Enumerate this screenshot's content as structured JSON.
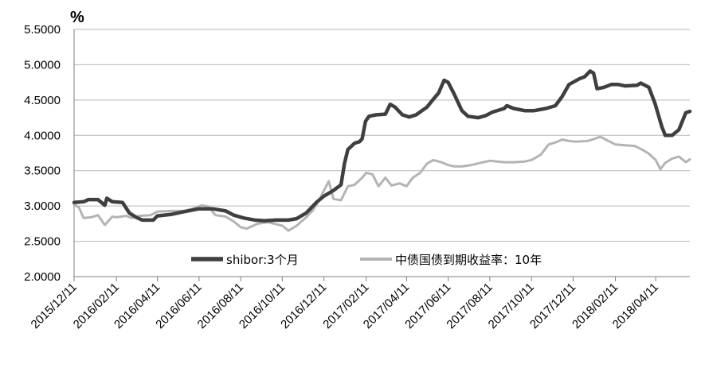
{
  "chart_data": {
    "type": "line",
    "title": "",
    "ylabel": "%",
    "xlabel": "",
    "ylim": [
      2.0,
      5.5
    ],
    "y_ticks": [
      "2.0000",
      "2.5000",
      "3.0000",
      "3.5000",
      "4.0000",
      "4.5000",
      "5.0000",
      "5.5000"
    ],
    "x_ticks": [
      "2015/12/11",
      "2016/02/11",
      "2016/04/11",
      "2016/06/11",
      "2016/08/11",
      "2016/10/11",
      "2016/12/11",
      "2017/02/11",
      "2017/04/11",
      "2017/06/11",
      "2017/08/11",
      "2017/10/11",
      "2017/12/11",
      "2018/02/11",
      "2018/04/11"
    ],
    "x_range": [
      "2015/12/11",
      "2018/05/31"
    ],
    "grid": "horizontal",
    "legend_position": "bottom-center",
    "series": [
      {
        "name": "shibor:3个月",
        "color": "#3f3f3f",
        "points": [
          [
            "2015/12/11",
            3.05
          ],
          [
            "2015/12/25",
            3.06
          ],
          [
            "2016/01/01",
            3.09
          ],
          [
            "2016/01/15",
            3.09
          ],
          [
            "2016/01/25",
            3.01
          ],
          [
            "2016/01/28",
            3.11
          ],
          [
            "2016/02/05",
            3.06
          ],
          [
            "2016/02/20",
            3.05
          ],
          [
            "2016/03/01",
            2.9
          ],
          [
            "2016/03/11",
            2.84
          ],
          [
            "2016/03/20",
            2.8
          ],
          [
            "2016/04/05",
            2.8
          ],
          [
            "2016/04/11",
            2.86
          ],
          [
            "2016/05/01",
            2.88
          ],
          [
            "2016/05/20",
            2.92
          ],
          [
            "2016/06/11",
            2.96
          ],
          [
            "2016/07/01",
            2.96
          ],
          [
            "2016/07/20",
            2.93
          ],
          [
            "2016/08/01",
            2.87
          ],
          [
            "2016/08/15",
            2.83
          ],
          [
            "2016/09/01",
            2.8
          ],
          [
            "2016/09/15",
            2.79
          ],
          [
            "2016/10/01",
            2.8
          ],
          [
            "2016/10/20",
            2.8
          ],
          [
            "2016/11/01",
            2.82
          ],
          [
            "2016/11/15",
            2.9
          ],
          [
            "2016/12/01",
            3.06
          ],
          [
            "2016/12/11",
            3.14
          ],
          [
            "2016/12/25",
            3.22
          ],
          [
            "2017/01/05",
            3.3
          ],
          [
            "2017/01/10",
            3.6
          ],
          [
            "2017/01/15",
            3.8
          ],
          [
            "2017/01/25",
            3.89
          ],
          [
            "2017/02/01",
            3.91
          ],
          [
            "2017/02/05",
            3.95
          ],
          [
            "2017/02/10",
            4.2
          ],
          [
            "2017/02/15",
            4.27
          ],
          [
            "2017/02/25",
            4.29
          ],
          [
            "2017/03/11",
            4.3
          ],
          [
            "2017/03/18",
            4.44
          ],
          [
            "2017/03/25",
            4.4
          ],
          [
            "2017/04/05",
            4.29
          ],
          [
            "2017/04/15",
            4.26
          ],
          [
            "2017/04/25",
            4.29
          ],
          [
            "2017/05/11",
            4.4
          ],
          [
            "2017/05/20",
            4.51
          ],
          [
            "2017/05/28",
            4.6
          ],
          [
            "2017/06/05",
            4.78
          ],
          [
            "2017/06/11",
            4.75
          ],
          [
            "2017/06/20",
            4.58
          ],
          [
            "2017/07/01",
            4.35
          ],
          [
            "2017/07/10",
            4.27
          ],
          [
            "2017/07/25",
            4.25
          ],
          [
            "2017/08/05",
            4.28
          ],
          [
            "2017/08/15",
            4.33
          ],
          [
            "2017/09/01",
            4.38
          ],
          [
            "2017/09/05",
            4.42
          ],
          [
            "2017/09/15",
            4.38
          ],
          [
            "2017/10/01",
            4.35
          ],
          [
            "2017/10/15",
            4.35
          ],
          [
            "2017/11/01",
            4.38
          ],
          [
            "2017/11/15",
            4.42
          ],
          [
            "2017/11/25",
            4.55
          ],
          [
            "2017/12/05",
            4.72
          ],
          [
            "2017/12/20",
            4.8
          ],
          [
            "2017/12/28",
            4.83
          ],
          [
            "2018/01/05",
            4.91
          ],
          [
            "2018/01/10",
            4.88
          ],
          [
            "2018/01/15",
            4.66
          ],
          [
            "2018/01/25",
            4.68
          ],
          [
            "2018/02/05",
            4.72
          ],
          [
            "2018/02/15",
            4.72
          ],
          [
            "2018/02/25",
            4.7
          ],
          [
            "2018/03/15",
            4.71
          ],
          [
            "2018/03/20",
            4.74
          ],
          [
            "2018/04/01",
            4.68
          ],
          [
            "2018/04/10",
            4.45
          ],
          [
            "2018/04/20",
            4.12
          ],
          [
            "2018/04/25",
            4.0
          ],
          [
            "2018/05/05",
            4.0
          ],
          [
            "2018/05/15",
            4.08
          ],
          [
            "2018/05/25",
            4.32
          ],
          [
            "2018/05/31",
            4.34
          ]
        ]
      },
      {
        "name": "中债国债到期收益率：10年",
        "color": "#b4b4b4",
        "points": [
          [
            "2015/12/11",
            3.02
          ],
          [
            "2015/12/18",
            2.98
          ],
          [
            "2015/12/25",
            2.83
          ],
          [
            "2016/01/05",
            2.84
          ],
          [
            "2016/01/15",
            2.87
          ],
          [
            "2016/01/25",
            2.73
          ],
          [
            "2016/02/05",
            2.85
          ],
          [
            "2016/02/11",
            2.84
          ],
          [
            "2016/02/25",
            2.86
          ],
          [
            "2016/03/05",
            2.83
          ],
          [
            "2016/03/15",
            2.86
          ],
          [
            "2016/04/01",
            2.87
          ],
          [
            "2016/04/11",
            2.92
          ],
          [
            "2016/05/01",
            2.93
          ],
          [
            "2016/05/20",
            2.93
          ],
          [
            "2016/06/05",
            2.97
          ],
          [
            "2016/06/15",
            3.01
          ],
          [
            "2016/06/25",
            2.99
          ],
          [
            "2016/07/05",
            2.87
          ],
          [
            "2016/07/20",
            2.85
          ],
          [
            "2016/08/01",
            2.78
          ],
          [
            "2016/08/11",
            2.7
          ],
          [
            "2016/08/20",
            2.68
          ],
          [
            "2016/09/05",
            2.75
          ],
          [
            "2016/09/20",
            2.77
          ],
          [
            "2016/10/11",
            2.72
          ],
          [
            "2016/10/20",
            2.65
          ],
          [
            "2016/11/01",
            2.72
          ],
          [
            "2016/11/15",
            2.84
          ],
          [
            "2016/11/25",
            2.94
          ],
          [
            "2016/12/05",
            3.1
          ],
          [
            "2016/12/11",
            3.22
          ],
          [
            "2016/12/18",
            3.35
          ],
          [
            "2016/12/25",
            3.1
          ],
          [
            "2017/01/05",
            3.08
          ],
          [
            "2017/01/15",
            3.28
          ],
          [
            "2017/01/25",
            3.3
          ],
          [
            "2017/02/05",
            3.4
          ],
          [
            "2017/02/11",
            3.47
          ],
          [
            "2017/02/20",
            3.45
          ],
          [
            "2017/03/01",
            3.28
          ],
          [
            "2017/03/11",
            3.4
          ],
          [
            "2017/03/20",
            3.29
          ],
          [
            "2017/04/01",
            3.32
          ],
          [
            "2017/04/11",
            3.28
          ],
          [
            "2017/04/20",
            3.4
          ],
          [
            "2017/05/01",
            3.47
          ],
          [
            "2017/05/11",
            3.6
          ],
          [
            "2017/05/20",
            3.65
          ],
          [
            "2017/06/01",
            3.62
          ],
          [
            "2017/06/11",
            3.58
          ],
          [
            "2017/06/20",
            3.56
          ],
          [
            "2017/07/01",
            3.56
          ],
          [
            "2017/07/15",
            3.58
          ],
          [
            "2017/08/01",
            3.62
          ],
          [
            "2017/08/11",
            3.64
          ],
          [
            "2017/09/01",
            3.62
          ],
          [
            "2017/09/15",
            3.62
          ],
          [
            "2017/10/01",
            3.63
          ],
          [
            "2017/10/11",
            3.65
          ],
          [
            "2017/10/25",
            3.73
          ],
          [
            "2017/11/05",
            3.87
          ],
          [
            "2017/11/15",
            3.9
          ],
          [
            "2017/11/25",
            3.94
          ],
          [
            "2017/12/05",
            3.92
          ],
          [
            "2017/12/15",
            3.91
          ],
          [
            "2018/01/01",
            3.92
          ],
          [
            "2018/01/11",
            3.95
          ],
          [
            "2018/01/20",
            3.98
          ],
          [
            "2018/02/01",
            3.92
          ],
          [
            "2018/02/11",
            3.87
          ],
          [
            "2018/02/25",
            3.86
          ],
          [
            "2018/03/11",
            3.85
          ],
          [
            "2018/03/20",
            3.81
          ],
          [
            "2018/04/01",
            3.74
          ],
          [
            "2018/04/11",
            3.65
          ],
          [
            "2018/04/18",
            3.52
          ],
          [
            "2018/04/25",
            3.61
          ],
          [
            "2018/05/05",
            3.67
          ],
          [
            "2018/05/15",
            3.7
          ],
          [
            "2018/05/25",
            3.62
          ],
          [
            "2018/05/31",
            3.66
          ]
        ]
      }
    ]
  }
}
